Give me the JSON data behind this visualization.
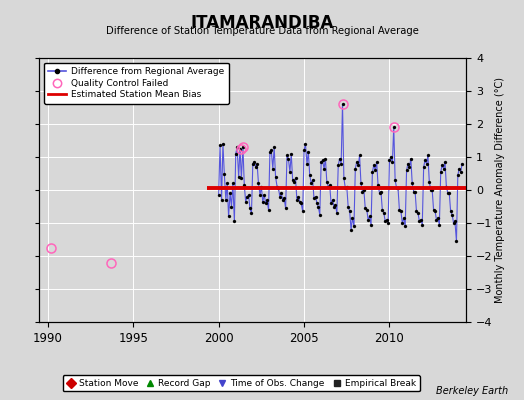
{
  "title": "ITAMARANDIBA",
  "subtitle": "Difference of Station Temperature Data from Regional Average",
  "ylabel": "Monthly Temperature Anomaly Difference (°C)",
  "xlabel_credit": "Berkeley Earth",
  "xlim": [
    1989.5,
    2014.5
  ],
  "ylim": [
    -4,
    4
  ],
  "yticks": [
    -4,
    -3,
    -2,
    -1,
    0,
    1,
    2,
    3,
    4
  ],
  "xticks": [
    1990,
    1995,
    2000,
    2005,
    2010
  ],
  "bias_line_y": 0.05,
  "bias_line_x_start": 1999.3,
  "bias_line_x_end": 2014.5,
  "background_color": "#d8d8d8",
  "plot_bg_color": "#d8d8d8",
  "line_color": "#5555dd",
  "bias_color": "#dd0000",
  "qc_color": "#ff66bb",
  "data_line": {
    "x": [
      2000.0,
      2000.08,
      2000.17,
      2000.25,
      2000.33,
      2000.42,
      2000.5,
      2000.58,
      2000.67,
      2000.75,
      2000.83,
      2000.92,
      2001.0,
      2001.08,
      2001.17,
      2001.25,
      2001.33,
      2001.42,
      2001.5,
      2001.58,
      2001.67,
      2001.75,
      2001.83,
      2001.92,
      2002.0,
      2002.08,
      2002.17,
      2002.25,
      2002.33,
      2002.42,
      2002.5,
      2002.58,
      2002.67,
      2002.75,
      2002.83,
      2002.92,
      2003.0,
      2003.08,
      2003.17,
      2003.25,
      2003.33,
      2003.42,
      2003.5,
      2003.58,
      2003.67,
      2003.75,
      2003.83,
      2003.92,
      2004.0,
      2004.08,
      2004.17,
      2004.25,
      2004.33,
      2004.42,
      2004.5,
      2004.58,
      2004.67,
      2004.75,
      2004.83,
      2004.92,
      2005.0,
      2005.08,
      2005.17,
      2005.25,
      2005.33,
      2005.42,
      2005.5,
      2005.58,
      2005.67,
      2005.75,
      2005.83,
      2005.92,
      2006.0,
      2006.08,
      2006.17,
      2006.25,
      2006.33,
      2006.42,
      2006.5,
      2006.58,
      2006.67,
      2006.75,
      2006.83,
      2006.92,
      2007.0,
      2007.08,
      2007.17,
      2007.25,
      2007.33,
      2007.42,
      2007.5,
      2007.58,
      2007.67,
      2007.75,
      2007.83,
      2007.92,
      2008.0,
      2008.08,
      2008.17,
      2008.25,
      2008.33,
      2008.42,
      2008.5,
      2008.58,
      2008.67,
      2008.75,
      2008.83,
      2008.92,
      2009.0,
      2009.08,
      2009.17,
      2009.25,
      2009.33,
      2009.42,
      2009.5,
      2009.58,
      2009.67,
      2009.75,
      2009.83,
      2009.92,
      2010.0,
      2010.08,
      2010.17,
      2010.25,
      2010.33,
      2010.42,
      2010.5,
      2010.58,
      2010.67,
      2010.75,
      2010.83,
      2010.92,
      2011.0,
      2011.08,
      2011.17,
      2011.25,
      2011.33,
      2011.42,
      2011.5,
      2011.58,
      2011.67,
      2011.75,
      2011.83,
      2011.92,
      2012.0,
      2012.08,
      2012.17,
      2012.25,
      2012.33,
      2012.42,
      2012.5,
      2012.58,
      2012.67,
      2012.75,
      2012.83,
      2012.92,
      2013.0,
      2013.08,
      2013.17,
      2013.25,
      2013.33,
      2013.42,
      2013.5,
      2013.58,
      2013.67,
      2013.75,
      2013.83,
      2013.92,
      2014.0,
      2014.08,
      2014.17,
      2014.25
    ],
    "y": [
      -0.15,
      1.35,
      -0.3,
      1.4,
      0.5,
      -0.3,
      0.2,
      -0.8,
      -0.1,
      -0.5,
      0.2,
      -0.95,
      1.1,
      1.3,
      0.4,
      1.25,
      0.35,
      1.3,
      0.15,
      -0.35,
      -0.2,
      -0.15,
      -0.55,
      -0.7,
      0.8,
      0.85,
      0.7,
      0.8,
      0.2,
      -0.15,
      0.1,
      -0.35,
      -0.15,
      -0.4,
      -0.3,
      -0.6,
      1.15,
      1.2,
      0.65,
      1.3,
      0.4,
      0.1,
      0.05,
      -0.2,
      -0.1,
      -0.3,
      -0.25,
      -0.55,
      1.05,
      0.95,
      0.55,
      1.1,
      0.3,
      0.25,
      0.35,
      -0.3,
      -0.2,
      -0.35,
      -0.4,
      -0.65,
      1.2,
      1.4,
      0.8,
      1.15,
      0.45,
      0.2,
      0.3,
      -0.25,
      -0.2,
      -0.4,
      -0.5,
      -0.75,
      0.85,
      0.9,
      0.65,
      0.95,
      0.25,
      0.1,
      0.15,
      -0.4,
      -0.3,
      -0.5,
      -0.45,
      -0.7,
      0.75,
      0.95,
      0.8,
      2.6,
      0.35,
      0.05,
      0.1,
      -0.5,
      -0.65,
      -1.2,
      -0.85,
      -1.1,
      0.65,
      0.85,
      0.75,
      1.05,
      0.2,
      -0.05,
      0.0,
      -0.55,
      -0.6,
      -0.9,
      -0.8,
      -1.05,
      0.55,
      0.75,
      0.6,
      0.85,
      0.15,
      -0.1,
      -0.05,
      -0.6,
      -0.7,
      -0.95,
      -0.9,
      -1.0,
      0.9,
      1.0,
      0.85,
      1.9,
      0.3,
      0.05,
      0.05,
      -0.6,
      -0.65,
      -1.0,
      -0.85,
      -1.1,
      0.6,
      0.8,
      0.7,
      0.95,
      0.2,
      -0.05,
      -0.05,
      -0.65,
      -0.7,
      -0.95,
      -0.9,
      -1.05,
      0.7,
      0.9,
      0.8,
      1.05,
      0.25,
      0.0,
      0.0,
      -0.6,
      -0.65,
      -0.9,
      -0.85,
      -1.05,
      0.55,
      0.75,
      0.65,
      0.85,
      0.1,
      -0.1,
      -0.1,
      -0.65,
      -0.75,
      -1.0,
      -0.95,
      -1.55,
      0.45,
      0.65,
      0.55,
      0.8
    ]
  },
  "qc_failed_points": [
    [
      1990.17,
      -1.75
    ],
    [
      1993.67,
      -2.2
    ],
    [
      2001.33,
      1.25
    ],
    [
      2001.42,
      1.3
    ],
    [
      2007.25,
      2.6
    ],
    [
      2010.25,
      1.9
    ]
  ],
  "legend1_items": [
    {
      "label": "Difference from Regional Average",
      "color": "#5555dd",
      "type": "line_dot"
    },
    {
      "label": "Quality Control Failed",
      "color": "#ff66bb",
      "type": "open_circle"
    },
    {
      "label": "Estimated Station Mean Bias",
      "color": "#dd0000",
      "type": "line"
    }
  ],
  "legend2_items": [
    {
      "label": "Station Move",
      "color": "#cc0000",
      "marker": "D"
    },
    {
      "label": "Record Gap",
      "color": "#008800",
      "marker": "^"
    },
    {
      "label": "Time of Obs. Change",
      "color": "#4444cc",
      "marker": "v"
    },
    {
      "label": "Empirical Break",
      "color": "#222222",
      "marker": "s"
    }
  ]
}
